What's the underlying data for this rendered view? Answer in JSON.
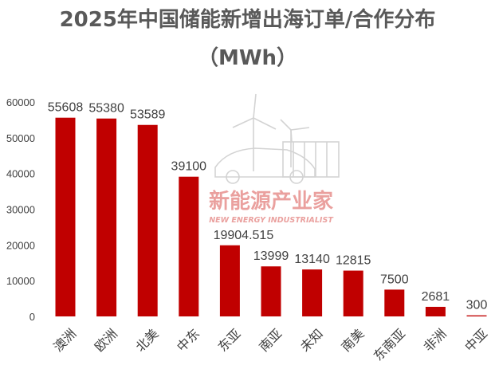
{
  "title_line1": "2025年中国储能新增出海订单/合作分布",
  "title_line2": "（MWh）",
  "watermark": {
    "cn": "新能源产业家",
    "en": "NEW ENERGY INDUSTRIALIST"
  },
  "colors": {
    "bar": "#C00000",
    "title": "#595959",
    "label": "#404040",
    "axis": "#404040",
    "watermark_red": "#D9534F"
  },
  "chart_data": {
    "type": "bar",
    "title": "2025年中国储能新增出海订单/合作分布",
    "subtitle": "（MWh）",
    "categories": [
      "澳洲",
      "欧洲",
      "北美",
      "中东",
      "东亚",
      "南亚",
      "未知",
      "南美",
      "东南亚",
      "非洲",
      "中亚"
    ],
    "values": [
      55608,
      55380,
      53589,
      39100,
      19904.515,
      13999,
      13140,
      12815,
      7500,
      2681,
      300
    ],
    "data_labels": [
      "55608",
      "55380",
      "53589",
      "39100",
      "19904.515",
      "13999",
      "13140",
      "12815",
      "7500",
      "2681",
      "300"
    ],
    "y_ticks": [
      "0",
      "10000",
      "20000",
      "30000",
      "40000",
      "50000",
      "60000"
    ],
    "ylim": [
      0,
      60000
    ],
    "grid": false,
    "legend": "none",
    "xlabel": "",
    "ylabel": ""
  }
}
